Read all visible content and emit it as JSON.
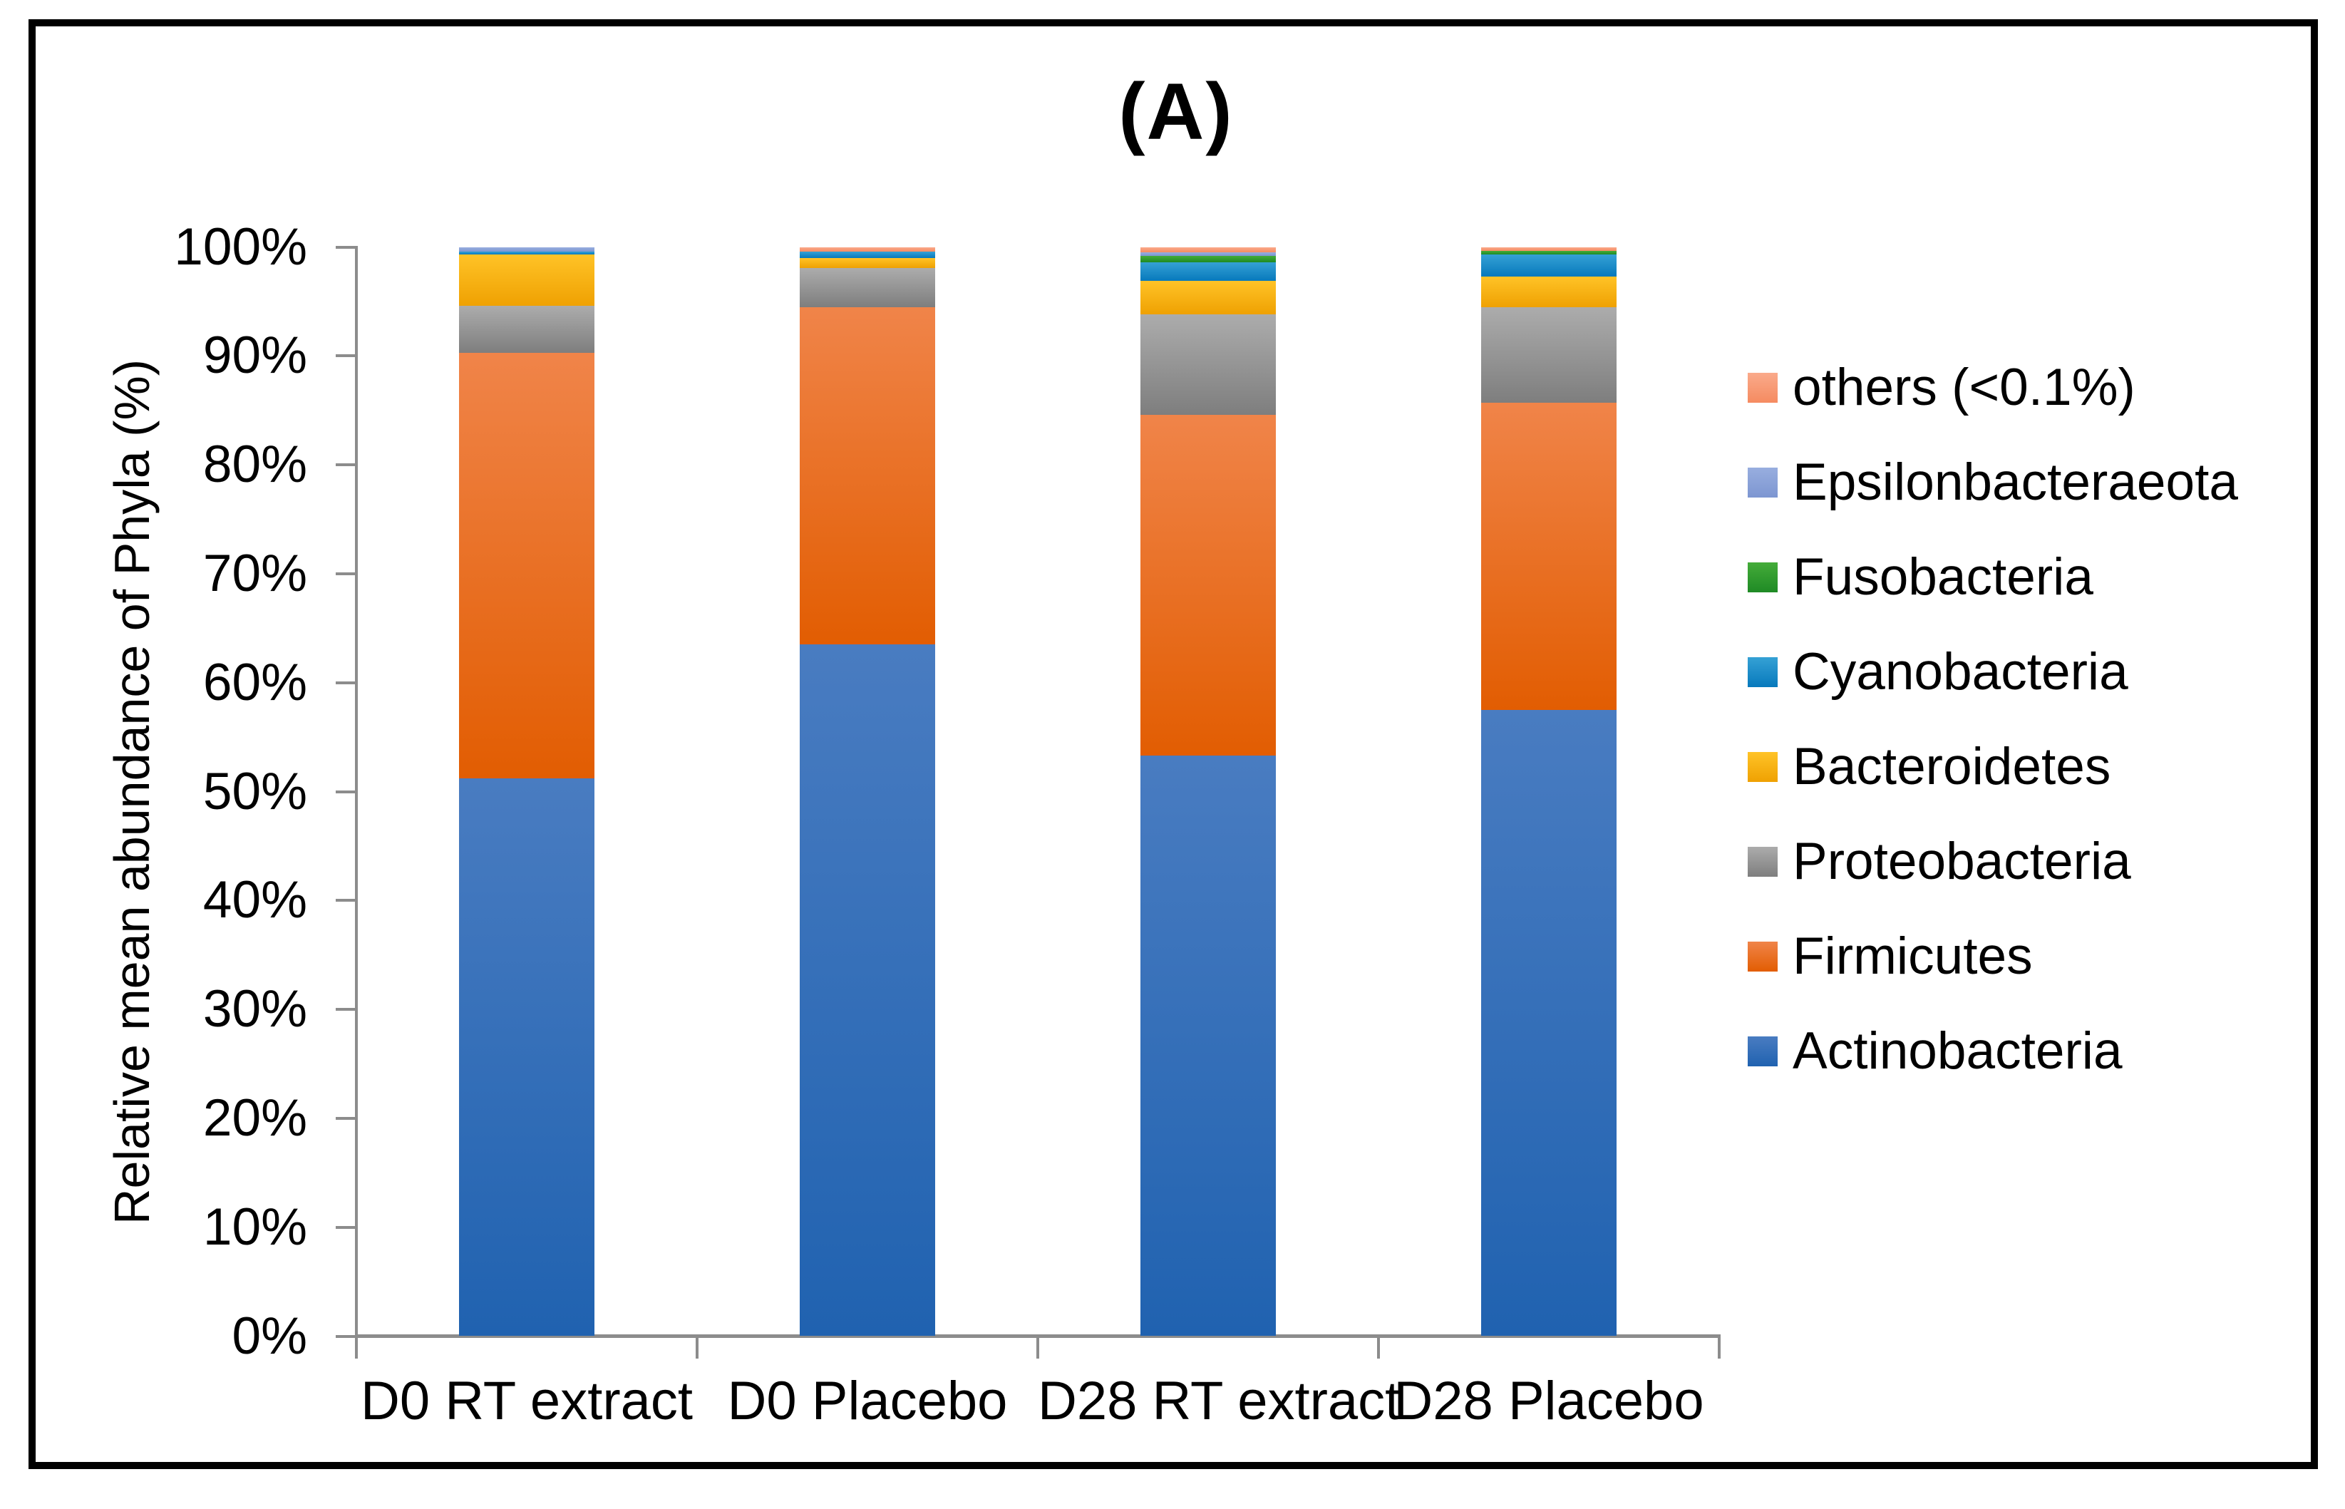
{
  "title": "(A)",
  "y_axis_title": "Relative mean abundance of Phyla  (%)",
  "y_ticks": [
    "0%",
    "10%",
    "20%",
    "30%",
    "40%",
    "50%",
    "60%",
    "70%",
    "80%",
    "90%",
    "100%"
  ],
  "chart_data": {
    "type": "bar",
    "subtype": "stacked-100",
    "title": "(A)",
    "xlabel": "",
    "ylabel": "Relative mean abundance of Phyla  (%)",
    "ylim": [
      0,
      100
    ],
    "grid": false,
    "legend_position": "right",
    "categories": [
      "D0 RT extract",
      "D0 Placebo",
      "D28 RT extract",
      "D28 Placebo"
    ],
    "series": [
      {
        "name": "Actinobacteria",
        "values": [
          51.2,
          63.5,
          53.3,
          57.5
        ],
        "color_top": "#497CC1",
        "color_bottom": "#2062B0",
        "legend_color": "#2068BA"
      },
      {
        "name": "Firmicutes",
        "values": [
          39.1,
          31.0,
          31.3,
          28.2
        ],
        "color_top": "#F08449",
        "color_bottom": "#E25D02",
        "legend_color": "#EA7125"
      },
      {
        "name": "Proteobacteria",
        "values": [
          4.3,
          3.6,
          9.2,
          8.8
        ],
        "color_top": "#ACACAC",
        "color_bottom": "#7E7E7E",
        "legend_color": "#9E9E9E"
      },
      {
        "name": "Bacteroidetes",
        "values": [
          4.7,
          0.9,
          3.1,
          2.8
        ],
        "color_top": "#FFC327",
        "color_bottom": "#EFA102",
        "legend_color": "#FCB305"
      },
      {
        "name": "Cyanobacteria",
        "values": [
          0.3,
          0.6,
          1.7,
          2.0
        ],
        "color_top": "#35A1D5",
        "color_bottom": "#0779BC",
        "legend_color": "#1C90CF"
      },
      {
        "name": "Fusobacteria",
        "values": [
          0,
          0,
          0.6,
          0.35
        ],
        "color_top": "#44AC39",
        "color_bottom": "#1F8A25",
        "legend_color": "#33A02C"
      },
      {
        "name": "Epsilonbacteraeota",
        "values": [
          0.4,
          0,
          0.35,
          0
        ],
        "color_top": "#98AEDF",
        "color_bottom": "#7D96D1",
        "legend_color": "#8FAADC"
      },
      {
        "name": "others (<0.1%)",
        "values": [
          0,
          0.4,
          0.45,
          0.35
        ],
        "color_top": "#FAAA8B",
        "color_bottom": "#F58B61",
        "legend_color": "#F79976"
      }
    ],
    "legend_order_top_to_bottom": [
      "others (<0.1%)",
      "Epsilonbacteraeota",
      "Fusobacteria",
      "Cyanobacteria",
      "Bacteroidetes",
      "Proteobacteria",
      "Firmicutes",
      "Actinobacteria"
    ]
  },
  "colors": {
    "axis": "#8C8C8C",
    "text": "#000000",
    "frame": "#000000",
    "background": "#FFFFFF"
  }
}
